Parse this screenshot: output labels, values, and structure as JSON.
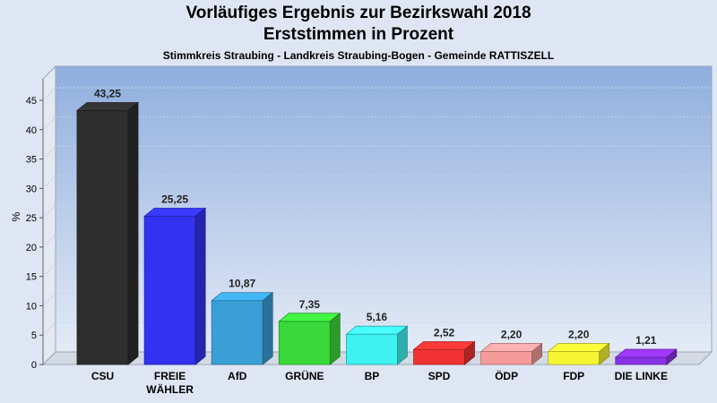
{
  "chart_data": {
    "type": "bar",
    "title": "Vorläufiges Ergebnis zur Bezirkswahl 2018",
    "subtitle_line": "Erststimmen in Prozent",
    "subtitle": "Stimmkreis Straubing - Landkreis Straubing-Bogen - Gemeinde RATTISZELL",
    "ylabel": "%",
    "ylim": [
      0,
      45
    ],
    "yticks": [
      0,
      5,
      10,
      15,
      20,
      25,
      30,
      35,
      40,
      45
    ],
    "grid": true,
    "categories": [
      "CSU",
      "FREIE WÄHLER",
      "AfD",
      "GRÜNE",
      "BP",
      "SPD",
      "ÖDP",
      "FDP",
      "DIE LINKE"
    ],
    "category_lines": [
      [
        "CSU"
      ],
      [
        "FREIE",
        "WÄHLER"
      ],
      [
        "AfD"
      ],
      [
        "GRÜNE"
      ],
      [
        "BP"
      ],
      [
        "SPD"
      ],
      [
        "ÖDP"
      ],
      [
        "FDP"
      ],
      [
        "DIE LINKE"
      ]
    ],
    "values": [
      43.25,
      25.25,
      10.87,
      7.35,
      5.16,
      2.52,
      2.2,
      2.2,
      1.21
    ],
    "value_labels": [
      "43,25",
      "25,25",
      "10,87",
      "7,35",
      "5,16",
      "2,52",
      "2,20",
      "2,20",
      "1,21"
    ],
    "colors": [
      "#2e2e2e",
      "#3232f0",
      "#3a9fd6",
      "#3ad83a",
      "#3ef2f2",
      "#f03232",
      "#f59a9a",
      "#f5f532",
      "#8a32e6"
    ],
    "plot_background": [
      "#8faede",
      "#e4ebf6"
    ]
  }
}
